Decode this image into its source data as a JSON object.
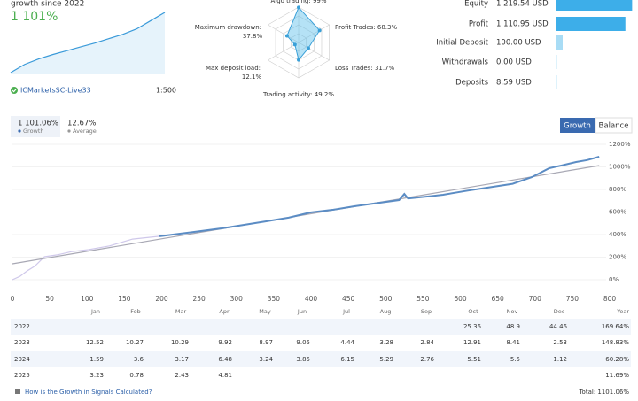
{
  "summary": {
    "caption": "growth since 2022",
    "growth": "1 101%",
    "server": "ICMarketsSC-Live33",
    "leverage": "1:500",
    "sparkline": {
      "values": [
        0,
        150,
        250,
        330,
        400,
        470,
        540,
        620,
        700,
        800,
        950,
        1101
      ],
      "color": "#3a9ad9"
    }
  },
  "radar": {
    "axes": [
      "Algo trading:",
      "Profit Trades:",
      "Loss Trades:",
      "Trading activity:",
      "Max deposit load:",
      "Maximum drawdown:"
    ],
    "values": [
      99,
      68.3,
      31.7,
      49.2,
      12.1,
      37.8
    ],
    "value_labels": [
      "99%",
      "68.3%",
      "31.7%",
      "49.2%",
      "12.1%",
      "37.8%"
    ],
    "color": "#3aa0d8"
  },
  "stats": {
    "labels": [
      "Equity",
      "Profit",
      "Initial Deposit",
      "Withdrawals",
      "Deposits"
    ],
    "values": [
      1219.54,
      1110.95,
      100.0,
      0.0,
      8.59
    ],
    "value_labels": [
      "1 219.54 USD",
      "1 110.95 USD",
      "100.00 USD",
      "0.00 USD",
      "8.59 USD"
    ],
    "colors": [
      "#3daee9",
      "#3daee9",
      "#a8dcf5",
      "#d6eefa",
      "#d6eefa"
    ]
  },
  "tabs": [
    {
      "value": "1 101.06%",
      "label": "Growth"
    },
    {
      "value": "12.67%",
      "label": "Average"
    }
  ],
  "buttons": [
    "Growth",
    "Balance"
  ],
  "growth_chart": {
    "type": "line",
    "xlim": [
      0,
      800
    ],
    "xticks": [
      0,
      50,
      100,
      150,
      200,
      250,
      300,
      350,
      400,
      450,
      500,
      550,
      600,
      650,
      700,
      750,
      800
    ],
    "ylim": [
      0,
      1200
    ],
    "yticks": [
      {
        "value": 0,
        "label": "0%"
      },
      {
        "value": 200,
        "label": "200%"
      },
      {
        "value": 400,
        "label": "400%"
      },
      {
        "value": 600,
        "label": "600%"
      },
      {
        "value": 800,
        "label": "800%"
      },
      {
        "value": 1000,
        "label": "1000%"
      },
      {
        "value": 1200,
        "label": "1200%"
      }
    ],
    "grid": true,
    "series": [
      {
        "color": "#cfc8ea",
        "x": [
          0,
          10,
          20,
          30,
          43,
          60,
          80,
          102,
          130,
          161,
          197
        ],
        "values": [
          0,
          30,
          80,
          120,
          204,
          220,
          250,
          267,
          300,
          360,
          385
        ]
      },
      {
        "color": "#5b8cc4",
        "x": [
          197,
          240,
          280,
          300,
          340,
          370,
          399,
          430,
          458,
          490,
          518,
          525,
          530,
          560,
          577,
          610,
          636,
          670,
          696,
          719,
          740,
          755,
          770,
          786
        ],
        "values": [
          385,
          420,
          455,
          475,
          518,
          550,
          596,
          620,
          651,
          680,
          706,
          760,
          720,
          740,
          753,
          790,
          816,
          850,
          910,
          988,
          1020,
          1043,
          1060,
          1090
        ]
      },
      {
        "color": "#a8a8b4",
        "x": [
          0,
          786
        ],
        "values": [
          141,
          1012
        ]
      }
    ]
  },
  "monthly_table": {
    "columns": [
      "Jan",
      "Feb",
      "Mar",
      "Apr",
      "May",
      "Jun",
      "Jul",
      "Aug",
      "Sep",
      "Oct",
      "Nov",
      "Dec",
      "Year"
    ],
    "rows": [
      {
        "year": "2022",
        "cells": [
          null,
          null,
          null,
          null,
          null,
          null,
          null,
          null,
          null,
          "25.36",
          "48.9",
          "44.46",
          "169.64%"
        ]
      },
      {
        "year": "2023",
        "cells": [
          "12.52",
          "10.27",
          "10.29",
          "9.92",
          "8.97",
          "9.05",
          "4.44",
          "3.28",
          "2.84",
          "12.91",
          "8.41",
          "2.53",
          "148.83%"
        ]
      },
      {
        "year": "2024",
        "cells": [
          "1.59",
          "3.6",
          "3.17",
          "6.48",
          "3.24",
          "3.85",
          "6.15",
          "5.29",
          "2.76",
          "5.51",
          "5.5",
          "1.12",
          "60.28%"
        ]
      },
      {
        "year": "2025",
        "cells": [
          "3.23",
          "0.78",
          "2.43",
          "4.81",
          null,
          null,
          null,
          null,
          null,
          null,
          null,
          null,
          "11.69%"
        ]
      }
    ],
    "help_link": "How is the Growth in Signals Calculated?",
    "total": "Total: 1101.06%"
  }
}
